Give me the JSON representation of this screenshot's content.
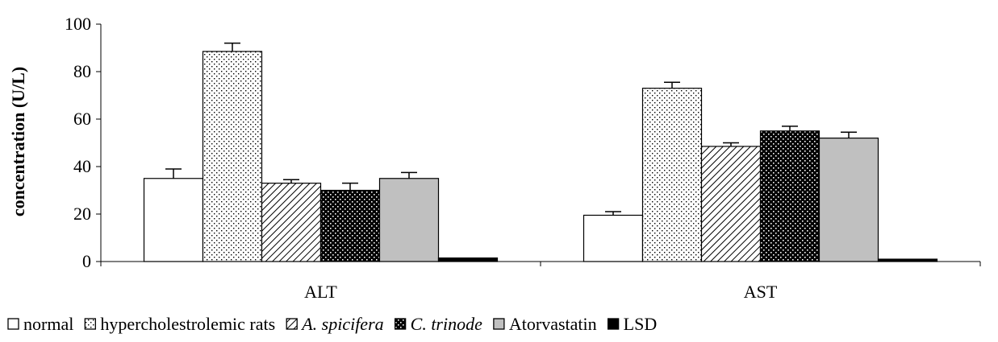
{
  "chart_data": {
    "type": "bar",
    "title": "",
    "xlabel": "",
    "ylabel": "concentration (U/L)",
    "ylim": [
      0,
      100
    ],
    "yticks": [
      0,
      20,
      40,
      60,
      80,
      100
    ],
    "categories": [
      "ALT",
      "AST"
    ],
    "series": [
      {
        "name": "normal",
        "values": [
          35,
          19.5
        ],
        "errors": [
          4,
          1.5
        ],
        "pattern": "white"
      },
      {
        "name": "hypercholestrolemic rats",
        "values": [
          88.5,
          73
        ],
        "errors": [
          3.5,
          2.5
        ],
        "pattern": "dots"
      },
      {
        "name": "A. spicifera",
        "values": [
          33,
          48.5
        ],
        "errors": [
          1.5,
          1.5
        ],
        "pattern": "hatch"
      },
      {
        "name": "C. trinode",
        "values": [
          30,
          55
        ],
        "errors": [
          3,
          2
        ],
        "pattern": "darkdots"
      },
      {
        "name": "Atorvastatin",
        "values": [
          35,
          52
        ],
        "errors": [
          2.5,
          2.5
        ],
        "pattern": "gray"
      },
      {
        "name": "LSD",
        "values": [
          1.5,
          1
        ],
        "errors": [
          0,
          0
        ],
        "pattern": "black"
      }
    ],
    "grid": false,
    "legend_position": "bottom"
  }
}
